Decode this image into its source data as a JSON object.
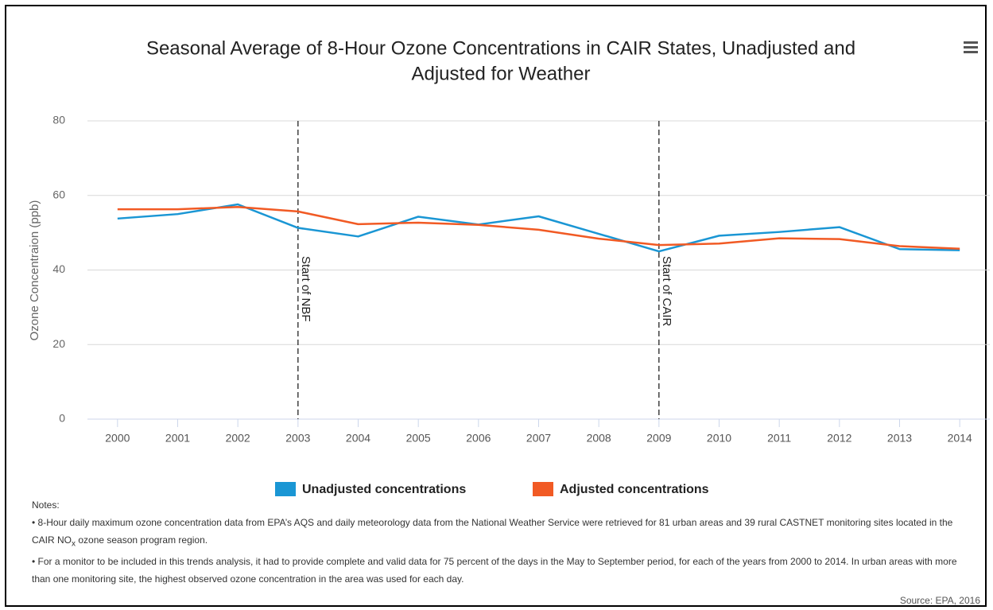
{
  "chart_data": {
    "type": "line",
    "title": "Seasonal Average of 8-Hour Ozone Concentrations in CAIR States, Unadjusted and",
    "title_line2": "Adjusted for Weather",
    "y_label": "Ozone Concentraion (ppb)",
    "categories": [
      "2000",
      "2001",
      "2002",
      "2003",
      "2004",
      "2005",
      "2006",
      "2007",
      "2008",
      "2009",
      "2010",
      "2011",
      "2012",
      "2013",
      "2014"
    ],
    "series": [
      {
        "name": "Unadjusted concentrations",
        "color": "#1a96d4",
        "values": [
          53.8,
          55.0,
          57.6,
          51.3,
          49.0,
          54.3,
          52.2,
          54.4,
          49.7,
          45.0,
          49.2,
          50.2,
          51.5,
          45.6,
          45.3
        ]
      },
      {
        "name": "Adjusted concentrations",
        "color": "#f15a24",
        "values": [
          56.3,
          56.3,
          56.9,
          55.7,
          52.3,
          52.7,
          52.1,
          50.8,
          48.4,
          46.7,
          47.1,
          48.5,
          48.3,
          46.4,
          45.7
        ]
      }
    ],
    "ylim": [
      0,
      80
    ],
    "yticks": [
      0,
      20,
      40,
      60,
      80
    ],
    "grid": true,
    "annotations": [
      {
        "x": "2003",
        "label": "Start of NBF"
      },
      {
        "x": "2009",
        "label": "Start of CAIR"
      }
    ],
    "notes": {
      "heading": "Notes:",
      "items": [
        {
          "text": "• 8-Hour daily maximum ozone concentration data from EPA’s AQS and daily meteorology data from the National Weather Service were retrieved for 81 urban areas and 39 rural CASTNET monitoring sites located in the CAIR NO",
          "sub": "x",
          "after": " ozone season program region."
        },
        {
          "text": "• For a monitor to be included in this trends analysis, it had to provide complete and valid data for 75 percent of the days in the May to September period, for each of the years from 2000 to 2014. In urban areas with more than one monitoring site, the highest observed ozone concentration in the area was used for each day."
        }
      ]
    },
    "source": "Source: EPA, 2016"
  }
}
